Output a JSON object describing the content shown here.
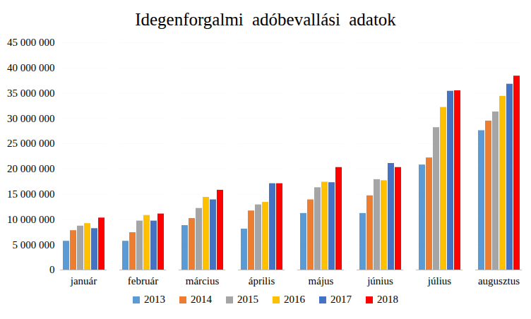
{
  "chart_data": {
    "type": "bar",
    "title": "Idegenforgalmi  adóbevallási  adatok",
    "categories": [
      "január",
      "február",
      "március",
      "április",
      "május",
      "június",
      "július",
      "augusztus"
    ],
    "series": [
      {
        "name": "2013",
        "color": "#5b9bd5",
        "values": [
          5700000,
          5700000,
          8800000,
          8100000,
          11200000,
          11200000,
          20800000,
          27600000
        ]
      },
      {
        "name": "2014",
        "color": "#ed7d31",
        "values": [
          7800000,
          7400000,
          10200000,
          11700000,
          13900000,
          14700000,
          22200000,
          29500000
        ]
      },
      {
        "name": "2015",
        "color": "#a5a5a5",
        "values": [
          8700000,
          9700000,
          12200000,
          12900000,
          16300000,
          17900000,
          28200000,
          31300000
        ]
      },
      {
        "name": "2016",
        "color": "#ffc000",
        "values": [
          9200000,
          10800000,
          14400000,
          13400000,
          17400000,
          17700000,
          32200000,
          34400000
        ]
      },
      {
        "name": "2017",
        "color": "#4472c4",
        "values": [
          8200000,
          9700000,
          13900000,
          17100000,
          17300000,
          21100000,
          35400000,
          36800000
        ]
      },
      {
        "name": "2018",
        "color": "#ff0000",
        "values": [
          10300000,
          11100000,
          15800000,
          17100000,
          20300000,
          20300000,
          35500000,
          38400000
        ]
      }
    ],
    "ylim": [
      0,
      45000000
    ],
    "yticks": [
      0,
      {
        "value": 5000000,
        "label": "5 000 000"
      },
      {
        "value": 10000000,
        "label": "10 000 000"
      },
      {
        "value": 15000000,
        "label": "15 000 000"
      },
      {
        "value": 20000000,
        "label": "20 000 000"
      },
      {
        "value": 25000000,
        "label": "25 000 000"
      },
      {
        "value": 30000000,
        "label": "30 000 000"
      },
      {
        "value": 35000000,
        "label": "35 000 000"
      },
      {
        "value": 40000000,
        "label": "40 000 000"
      },
      {
        "value": 45000000,
        "label": "45 000 000"
      }
    ],
    "grid": true,
    "legend": "bottom"
  }
}
